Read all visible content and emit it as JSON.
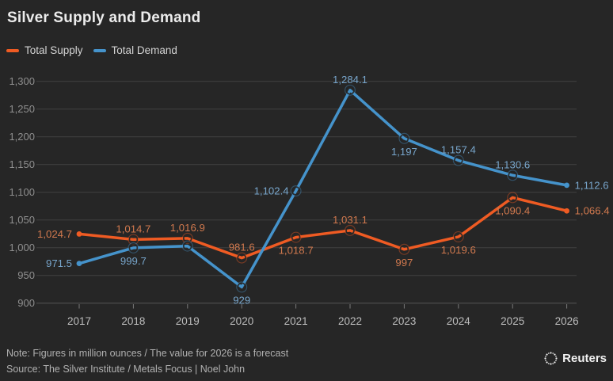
{
  "header": {
    "title": "Silver Supply and Demand"
  },
  "legend": {
    "items": [
      {
        "label": "Total Supply",
        "color": "#ef5b23"
      },
      {
        "label": "Total Demand",
        "color": "#4593cb"
      }
    ]
  },
  "chart_data": {
    "type": "line",
    "title": "Silver Supply and Demand",
    "categories": [
      "2017",
      "2018",
      "2019",
      "2020",
      "2021",
      "2022",
      "2023",
      "2024",
      "2025",
      "2026"
    ],
    "ylim": [
      900,
      1300
    ],
    "ytick_step": 50,
    "ytick_labels": [
      "900",
      "950",
      "1,000",
      "1,050",
      "1,100",
      "1,150",
      "1,200",
      "1,250",
      "1,300"
    ],
    "grid": true,
    "legend_position": "top-left",
    "series": [
      {
        "name": "Total Supply",
        "color": "#ef5b23",
        "label_color": "#d1794e",
        "values": [
          1024.7,
          1014.7,
          1016.9,
          981.6,
          1018.7,
          1031.1,
          997,
          1019.6,
          1090.4,
          1066.4
        ],
        "point_labels": [
          "1,024.7",
          "1,014.7",
          "1,016.9",
          "981.6",
          "1,018.7",
          "1,031.1",
          "997",
          "1,019.6",
          "1,090.4",
          "1,066.4"
        ],
        "label_placement": [
          "left",
          "above",
          "above",
          "above",
          "below",
          "above",
          "below",
          "below",
          "below",
          "right"
        ]
      },
      {
        "name": "Total Demand",
        "color": "#4593cb",
        "label_color": "#78a6cc",
        "values": [
          971.5,
          999.7,
          1003,
          929,
          1102.4,
          1284.1,
          1197,
          1157.4,
          1130.6,
          1112.6
        ],
        "point_labels": [
          "971.5",
          "999.7",
          "",
          "929",
          "1,102.4",
          "1,284.1",
          "1,197",
          "1,157.4",
          "1,130.6",
          "1,112.6"
        ],
        "label_placement": [
          "left",
          "below",
          "none",
          "below",
          "left",
          "above",
          "below",
          "above",
          "above",
          "right"
        ]
      }
    ]
  },
  "footer": {
    "note": "Note: Figures in million ounces / The value for 2026 is a forecast",
    "source": "Source: The Silver Institute / Metals Focus | Noel John",
    "logo": "Reuters"
  },
  "colors": {
    "background": "#262626",
    "gridline": "#414141",
    "baseline": "#575757",
    "y_axis_label": "#8f8f8f",
    "x_axis_label": "#bcbcbc",
    "tick": "#7a7a7a"
  }
}
